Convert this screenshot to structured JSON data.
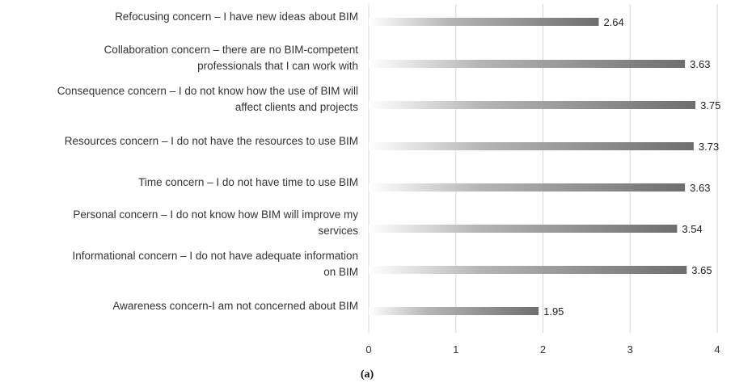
{
  "chart_data": {
    "type": "bar",
    "orientation": "horizontal",
    "categories": [
      [
        "Refocusing concern – I have new ideas about BIM"
      ],
      [
        "Collaboration concern – there are no BIM-competent",
        "professionals that I can work with"
      ],
      [
        "Consequence concern – I do not know how the use of BIM will",
        "affect clients and projects"
      ],
      [
        "Resources concern – I do not have the resources to use BIM"
      ],
      [
        "Time concern – I do not have time to use BIM"
      ],
      [
        "Personal concern – I do not know how BIM will improve my",
        "services"
      ],
      [
        "Informational concern – I do not have adequate information",
        "on BIM"
      ],
      [
        "Awareness concern-I am not concerned about BIM"
      ]
    ],
    "values": [
      2.64,
      3.63,
      3.75,
      3.73,
      3.63,
      3.54,
      3.65,
      1.95
    ],
    "value_labels": [
      "2.64",
      "3.63",
      "3.75",
      "3.73",
      "3.63",
      "3.54",
      "3.65",
      "1.95"
    ],
    "xlim": [
      0,
      4
    ],
    "x_ticks": [
      "0",
      "1",
      "2",
      "3",
      "4"
    ],
    "grid": true,
    "legend": "none",
    "bar_color_start": "#ffffff",
    "bar_color_end": "#6e6e6e",
    "caption": "(a)"
  }
}
